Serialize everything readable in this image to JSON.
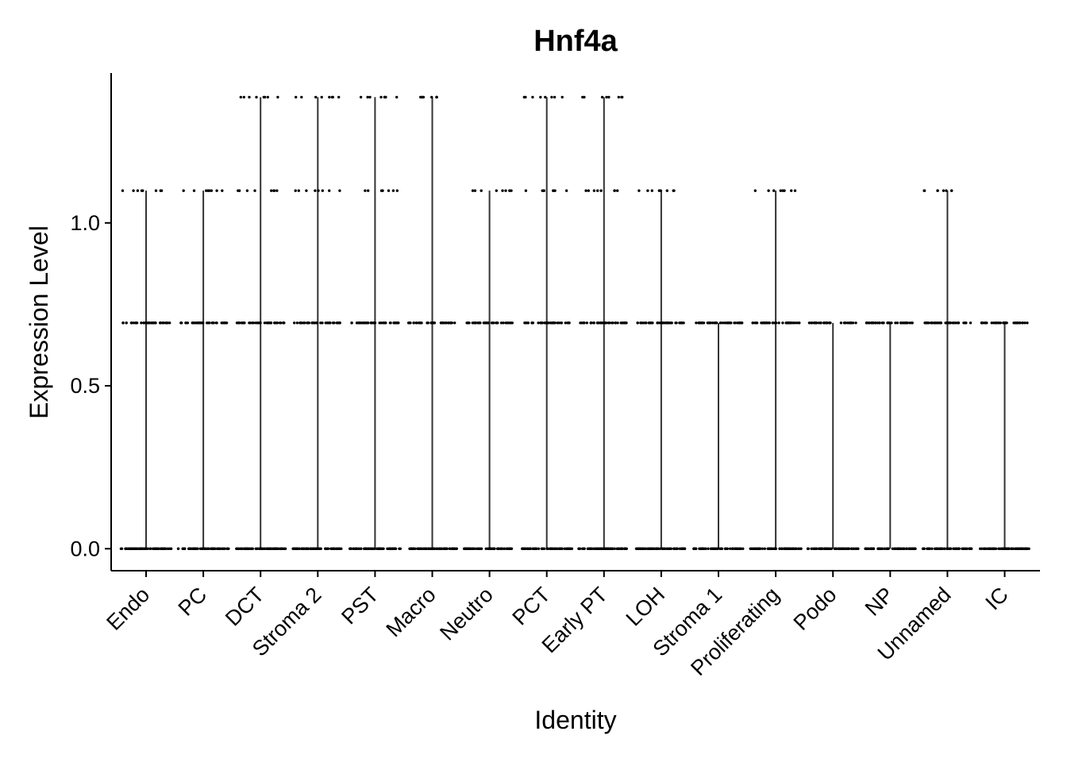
{
  "chart_data": {
    "type": "violin",
    "title": "Hnf4a",
    "xlabel": "Identity",
    "ylabel": "Expression Level",
    "ylim": [
      -0.0675,
      1.46
    ],
    "yticks": [
      0.0,
      0.5,
      1.0
    ],
    "ytick_labels": [
      "0.0",
      "0.5",
      "1.0"
    ],
    "grid": false,
    "legend": "none",
    "point_color": "#000000",
    "categories": [
      "Endo",
      "PC",
      "DCT",
      "Stroma 2",
      "PST",
      "Macro",
      "Neutro",
      "PCT",
      "Early PT",
      "LOH",
      "Stroma 1",
      "Proliferating",
      "Podo",
      "NP",
      "Unnamed",
      "IC"
    ],
    "series": [
      {
        "category": "Endo",
        "max": 1.099,
        "levels": [
          0,
          0.693,
          1.099
        ]
      },
      {
        "category": "PC",
        "max": 1.099,
        "levels": [
          0,
          0.693,
          1.099
        ]
      },
      {
        "category": "DCT",
        "max": 1.386,
        "levels": [
          0,
          0.693,
          1.099,
          1.386
        ]
      },
      {
        "category": "Stroma 2",
        "max": 1.386,
        "levels": [
          0,
          0.693,
          1.099,
          1.386
        ]
      },
      {
        "category": "PST",
        "max": 1.386,
        "levels": [
          0,
          0.693,
          1.099,
          1.386
        ]
      },
      {
        "category": "Macro",
        "max": 1.386,
        "levels": [
          0,
          0.693,
          1.386
        ]
      },
      {
        "category": "Neutro",
        "max": 1.099,
        "levels": [
          0,
          0.693,
          1.099
        ]
      },
      {
        "category": "PCT",
        "max": 1.386,
        "levels": [
          0,
          0.693,
          1.099,
          1.386
        ]
      },
      {
        "category": "Early PT",
        "max": 1.386,
        "levels": [
          0,
          0.693,
          1.099,
          1.386
        ]
      },
      {
        "category": "LOH",
        "max": 1.099,
        "levels": [
          0,
          0.693,
          1.099
        ]
      },
      {
        "category": "Stroma 1",
        "max": 0.693,
        "levels": [
          0,
          0.693
        ]
      },
      {
        "category": "Proliferating",
        "max": 1.099,
        "levels": [
          0,
          0.693,
          1.099
        ]
      },
      {
        "category": "Podo",
        "max": 0.693,
        "levels": [
          0,
          0.693
        ]
      },
      {
        "category": "NP",
        "max": 0.693,
        "levels": [
          0,
          0.693
        ]
      },
      {
        "category": "Unnamed",
        "max": 1.099,
        "levels": [
          0,
          0.693,
          1.099
        ]
      },
      {
        "category": "IC",
        "max": 0.693,
        "levels": [
          0,
          0.693
        ]
      }
    ]
  }
}
